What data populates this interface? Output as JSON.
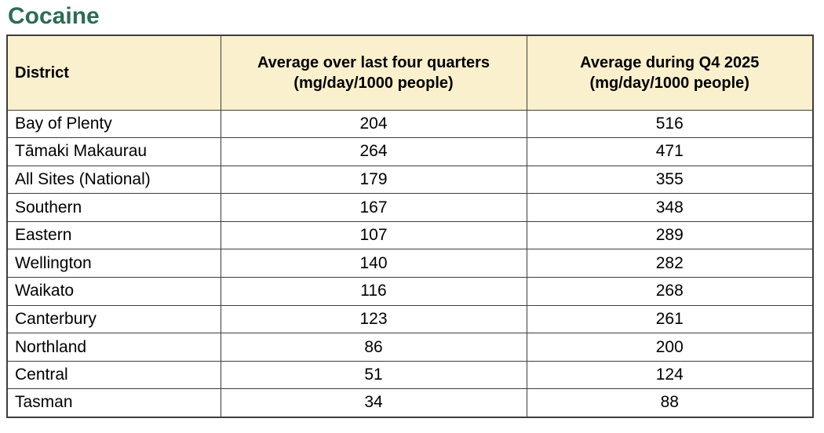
{
  "title": "Cocaine",
  "colors": {
    "title_green": "#2E6C52",
    "header_bg": "#FBF0CD",
    "border": "#3d3d3d"
  },
  "table": {
    "headers": {
      "district": "District",
      "avg_last_four_line1": "Average over last four quarters",
      "avg_last_four_line2": "(mg/day/1000 people)",
      "avg_q4_line1": "Average during Q4 2025",
      "avg_q4_line2": "(mg/day/1000 people)"
    },
    "rows": [
      {
        "district": "Bay of Plenty",
        "avg_last_four": "204",
        "avg_q4": "516"
      },
      {
        "district": "Tāmaki Makaurau",
        "avg_last_four": "264",
        "avg_q4": "471"
      },
      {
        "district": "All Sites (National)",
        "avg_last_four": "179",
        "avg_q4": "355"
      },
      {
        "district": "Southern",
        "avg_last_four": "167",
        "avg_q4": "348"
      },
      {
        "district": "Eastern",
        "avg_last_four": "107",
        "avg_q4": "289"
      },
      {
        "district": "Wellington",
        "avg_last_four": "140",
        "avg_q4": "282"
      },
      {
        "district": "Waikato",
        "avg_last_four": "116",
        "avg_q4": "268"
      },
      {
        "district": "Canterbury",
        "avg_last_four": "123",
        "avg_q4": "261"
      },
      {
        "district": "Northland",
        "avg_last_four": "86",
        "avg_q4": "200"
      },
      {
        "district": "Central",
        "avg_last_four": "51",
        "avg_q4": "124"
      },
      {
        "district": "Tasman",
        "avg_last_four": "34",
        "avg_q4": "88"
      }
    ]
  },
  "chart_data": {
    "type": "table",
    "title": "Cocaine",
    "columns": [
      "District",
      "Average over last four quarters (mg/day/1000 people)",
      "Average during Q4 2025 (mg/day/1000 people)"
    ],
    "rows": [
      [
        "Bay of Plenty",
        204,
        516
      ],
      [
        "Tāmaki Makaurau",
        264,
        471
      ],
      [
        "All Sites (National)",
        179,
        355
      ],
      [
        "Southern",
        167,
        348
      ],
      [
        "Eastern",
        107,
        289
      ],
      [
        "Wellington",
        140,
        282
      ],
      [
        "Waikato",
        116,
        268
      ],
      [
        "Canterbury",
        123,
        261
      ],
      [
        "Northland",
        86,
        200
      ],
      [
        "Central",
        51,
        124
      ],
      [
        "Tasman",
        34,
        88
      ]
    ],
    "units": "mg/day/1000 people"
  }
}
